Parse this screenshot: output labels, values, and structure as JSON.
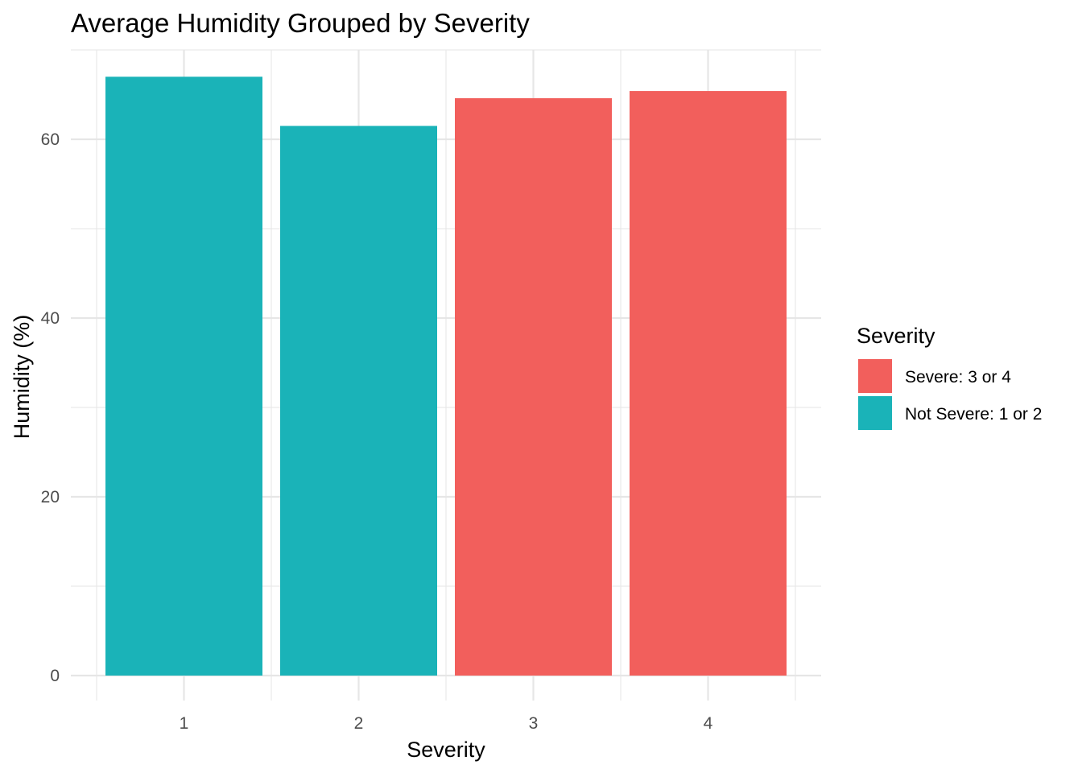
{
  "chart_data": {
    "type": "bar",
    "title": "Average Humidity Grouped by Severity",
    "xlabel": "Severity",
    "ylabel": "Humidity (%)",
    "categories": [
      "1",
      "2",
      "3",
      "4"
    ],
    "values": [
      67.0,
      61.5,
      64.6,
      65.4
    ],
    "groups": [
      "Not Severe: 1 or 2",
      "Not Severe: 1 or 2",
      "Severe: 3 or 4",
      "Severe: 3 or 4"
    ],
    "ylim": [
      0,
      70
    ],
    "y_ticks": [
      0,
      20,
      40,
      60
    ],
    "grid": true,
    "legend": {
      "title": "Severity",
      "position": "right",
      "items": [
        {
          "label": "Severe: 3 or 4",
          "color": "#F25F5C"
        },
        {
          "label": "Not Severe: 1 or 2",
          "color": "#1AB3B8"
        }
      ]
    },
    "colors": {
      "Severe: 3 or 4": "#F25F5C",
      "Not Severe: 1 or 2": "#1AB3B8",
      "grid": "#E6E6E6",
      "background": "#FFFFFF"
    }
  }
}
